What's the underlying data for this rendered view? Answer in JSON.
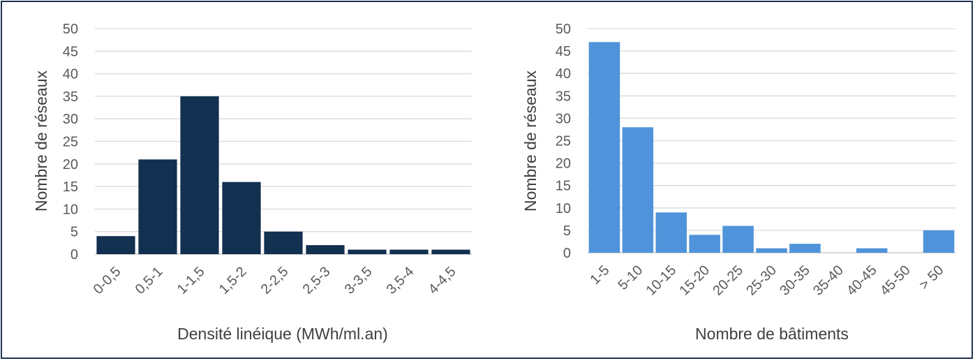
{
  "chart_data": [
    {
      "type": "bar",
      "title": "",
      "xlabel": "Densité linéique (MWh/ml.an)",
      "ylabel": "Nombre de réseaux",
      "ylim": [
        0,
        50
      ],
      "yticks": [
        "0",
        "5",
        "10",
        "15",
        "20",
        "25",
        "30",
        "35",
        "40",
        "45",
        "50"
      ],
      "categories": [
        "0-0,5",
        "0,5-1",
        "1-1,5",
        "1,5-2",
        "2-2,5",
        "2,5-3",
        "3-3,5",
        "3,5-4",
        "4-4,5"
      ],
      "values": [
        4,
        21,
        35,
        16,
        5,
        2,
        1,
        1,
        1
      ],
      "color": "#12304f",
      "grid": true,
      "legend": "none"
    },
    {
      "type": "bar",
      "title": "",
      "xlabel": "Nombre de bâtiments",
      "ylabel": "Nombre de réseaux",
      "ylim": [
        0,
        50
      ],
      "yticks": [
        "0",
        "5",
        "10",
        "15",
        "20",
        "25",
        "30",
        "35",
        "40",
        "45",
        "50"
      ],
      "categories": [
        "1-5",
        "5-10",
        "10-15",
        "15-20",
        "20-25",
        "25-30",
        "30-35",
        "35-40",
        "40-45",
        "45-50",
        "> 50"
      ],
      "values": [
        47,
        28,
        9,
        4,
        6,
        1,
        2,
        0,
        1,
        0,
        5
      ],
      "color": "#4f94da",
      "grid": true,
      "legend": "none"
    }
  ]
}
